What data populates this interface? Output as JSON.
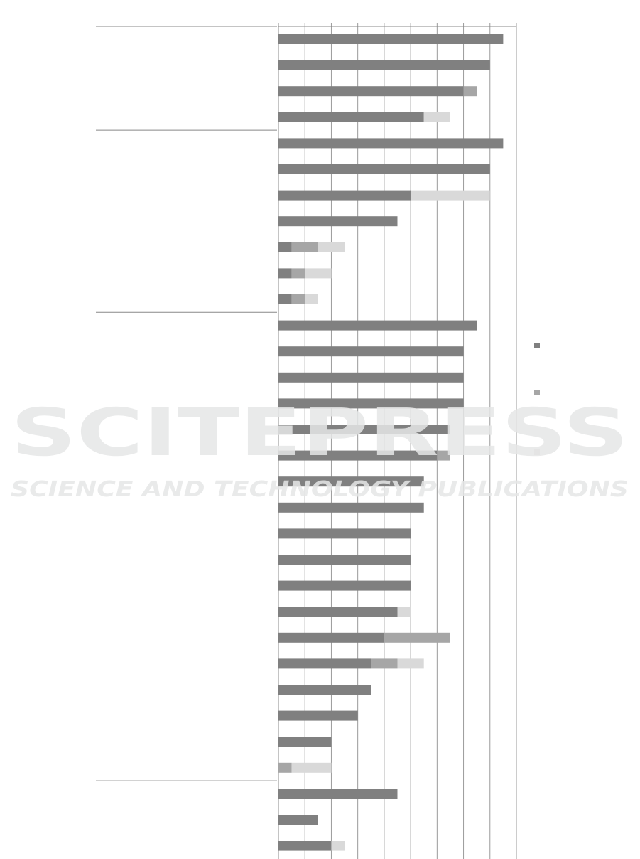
{
  "chart_data": {
    "type": "bar",
    "orientation": "horizontal",
    "stacked": true,
    "title": "",
    "xlabel": "",
    "ylabel": "",
    "xlim": [
      0,
      9
    ],
    "grid": true,
    "legend_placement": "right",
    "colors": [
      "#808080",
      "#a6a6a6",
      "#d9d9d9"
    ],
    "groups": [
      {
        "rows": [
          0,
          1,
          2,
          3
        ]
      },
      {
        "rows": [
          4,
          5,
          6,
          7,
          8,
          9,
          10
        ]
      },
      {
        "rows": [
          11,
          12,
          13,
          14,
          15,
          16,
          17,
          18,
          19,
          20,
          21,
          22,
          23,
          24,
          25,
          26,
          27,
          28
        ]
      },
      {
        "rows": [
          29,
          30,
          31
        ]
      }
    ],
    "series": [
      {
        "values": [
          8.5,
          8,
          7,
          5.5,
          8.5,
          8,
          5,
          4.5,
          0.5,
          0.5,
          0.5,
          7.5,
          7,
          7,
          7,
          6.5,
          6,
          5.5,
          5.5,
          5,
          5,
          5,
          4.5,
          4,
          3.5,
          3.5,
          3,
          2,
          0,
          4.5,
          1.5,
          2
        ]
      },
      {
        "values": [
          0,
          0,
          0.5,
          0,
          0,
          0,
          0,
          0,
          1,
          0.5,
          0.5,
          0,
          0,
          0,
          0,
          0,
          0.5,
          0,
          0,
          0,
          0,
          0,
          0,
          2.5,
          1,
          0,
          0,
          0,
          0.5,
          0,
          0,
          0
        ]
      },
      {
        "values": [
          0,
          0,
          0,
          1,
          0,
          0,
          3,
          0,
          1,
          1,
          0.5,
          0,
          0,
          0,
          0,
          0,
          0,
          0,
          0,
          0,
          0,
          0,
          0.5,
          0,
          1,
          0,
          0,
          0,
          1.5,
          0,
          0,
          0.5
        ]
      }
    ]
  },
  "watermark": {
    "line1": "SCITEPRESS",
    "line2": "SCIENCE AND TECHNOLOGY PUBLICATIONS"
  }
}
